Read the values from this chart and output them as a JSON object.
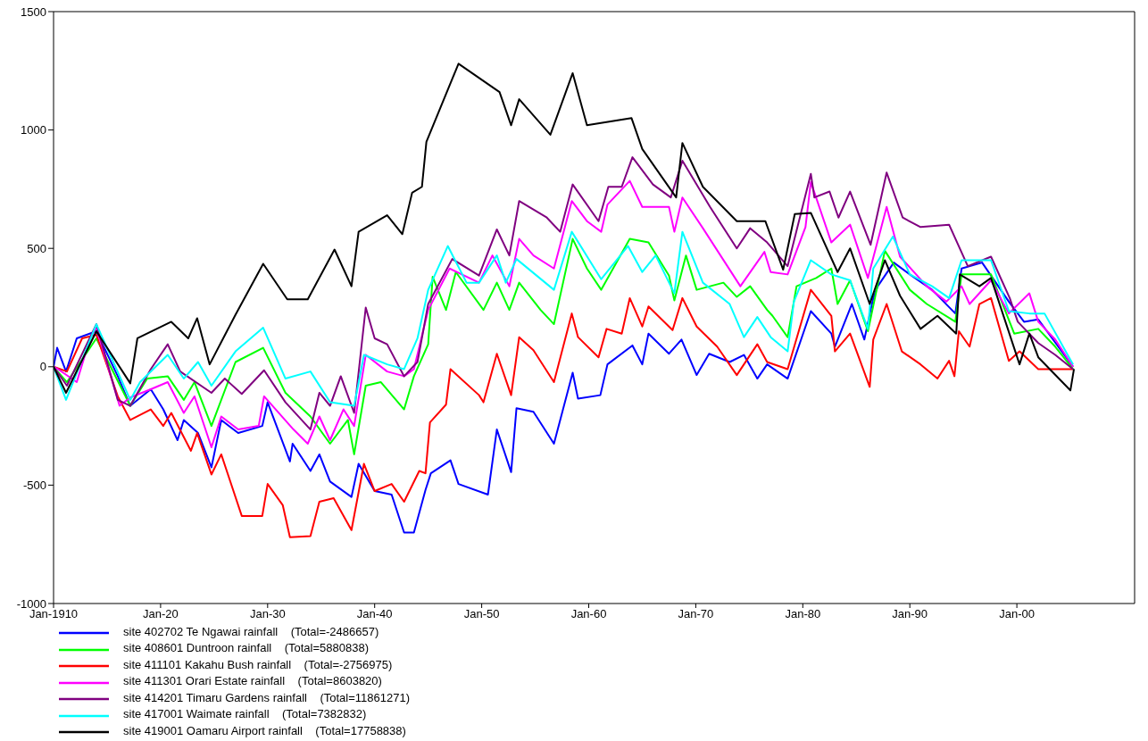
{
  "chart_data": {
    "type": "line",
    "xlim": [
      "1910-01",
      "2011-01"
    ],
    "ylim": [
      -1000,
      1500
    ],
    "xticks": [
      {
        "value": "1910-01",
        "label": "Jan-1910"
      },
      {
        "value": "1920-01",
        "label": "Jan-20"
      },
      {
        "value": "1930-01",
        "label": "Jan-30"
      },
      {
        "value": "1940-01",
        "label": "Jan-40"
      },
      {
        "value": "1950-01",
        "label": "Jan-50"
      },
      {
        "value": "1960-01",
        "label": "Jan-60"
      },
      {
        "value": "1970-01",
        "label": "Jan-70"
      },
      {
        "value": "1980-01",
        "label": "Jan-80"
      },
      {
        "value": "1990-01",
        "label": "Jan-90"
      },
      {
        "value": "2000-01",
        "label": "Jan-00"
      }
    ],
    "yticks": [
      -1000,
      -500,
      0,
      500,
      1000,
      1500
    ],
    "grid": false,
    "legend": "bottom",
    "marker": "none",
    "line_style": "solid",
    "series": [
      {
        "name": "site 402702 Te Ngawai rainfall    (Total=-2486657)",
        "color": "#0000ff",
        "x": [
          "1910-01",
          "1910-05",
          "1911-03",
          "1912-03",
          "1914-01",
          "1916-01",
          "1917-03",
          "1919-02",
          "1920-04",
          "1921-08",
          "1922-03",
          "1923-07",
          "1924-10",
          "1925-09",
          "1927-04",
          "1929-07",
          "1930-01",
          "1932-02",
          "1932-05",
          "1934-01",
          "1934-11",
          "1935-11",
          "1937-11",
          "1938-07",
          "1940-01",
          "1941-08",
          "1942-10",
          "1943-09",
          "1944-10",
          "1945-04",
          "1947-02",
          "1947-11",
          "1950-08",
          "1951-06",
          "1952-10",
          "1953-04",
          "1954-11",
          "1956-10",
          "1958-07",
          "1959-01",
          "1961-02",
          "1961-10",
          "1964-02",
          "1965-01",
          "1965-08",
          "1967-07",
          "1968-09",
          "1970-02",
          "1971-04",
          "1973-03",
          "1974-07",
          "1975-10",
          "1976-09",
          "1978-08",
          "1980-10",
          "1982-09",
          "1983-01",
          "1984-08",
          "1985-10",
          "1986-08",
          "1987-01",
          "1988-07",
          "1990-01",
          "1992-02",
          "1994-04",
          "1994-11",
          "1996-10",
          "1999-04",
          "2000-09",
          "2002-01",
          "2005-04"
        ],
        "values": [
          0,
          80,
          -20,
          120,
          150,
          -40,
          -165,
          -95,
          -180,
          -310,
          -225,
          -280,
          -425,
          -225,
          -280,
          -250,
          -150,
          -400,
          -325,
          -440,
          -370,
          -485,
          -550,
          -410,
          -525,
          -540,
          -700,
          -700,
          -520,
          -450,
          -395,
          -495,
          -540,
          -265,
          -445,
          -175,
          -190,
          -325,
          -25,
          -135,
          -120,
          10,
          90,
          10,
          140,
          55,
          115,
          -35,
          55,
          20,
          50,
          -50,
          10,
          -50,
          235,
          140,
          85,
          265,
          115,
          290,
          340,
          440,
          390,
          325,
          225,
          415,
          440,
          275,
          190,
          200,
          0
        ]
      },
      {
        "name": "site 408601 Duntroon rainfall    (Total=5880838)",
        "color": "#00ff00",
        "x": [
          "1910-01",
          "1911-04",
          "1914-01",
          "1917-03",
          "1918-10",
          "1920-09",
          "1922-03",
          "1923-03",
          "1924-10",
          "1927-01",
          "1929-08",
          "1931-09",
          "1934-01",
          "1935-11",
          "1937-07",
          "1938-02",
          "1939-03",
          "1940-08",
          "1942-10",
          "1943-09",
          "1945-01",
          "1945-06",
          "1946-09",
          "1947-08",
          "1950-03",
          "1951-06",
          "1952-08",
          "1953-07",
          "1955-07",
          "1956-10",
          "1958-07",
          "1959-11",
          "1961-03",
          "1963-11",
          "1965-08",
          "1967-07",
          "1968-01",
          "1969-02",
          "1970-02",
          "1972-08",
          "1973-11",
          "1975-02",
          "1976-09",
          "1977-03",
          "1978-08",
          "1979-06",
          "1981-04",
          "1982-09",
          "1983-04",
          "1984-06",
          "1986-02",
          "1987-09",
          "1990-01",
          "1991-08",
          "1994-04",
          "1994-11",
          "1997-08",
          "1999-10",
          "2002-01",
          "2003-08",
          "2005-04"
        ],
        "values": [
          0,
          -65,
          120,
          -165,
          -50,
          -40,
          -140,
          -65,
          -250,
          20,
          80,
          -110,
          -210,
          -325,
          -225,
          -370,
          -80,
          -65,
          -180,
          -40,
          95,
          380,
          240,
          400,
          240,
          355,
          240,
          355,
          240,
          180,
          540,
          415,
          325,
          540,
          525,
          385,
          280,
          470,
          325,
          355,
          295,
          340,
          240,
          215,
          125,
          340,
          375,
          415,
          265,
          365,
          150,
          490,
          325,
          265,
          190,
          390,
          390,
          140,
          160,
          85,
          -10
        ]
      },
      {
        "name": "site 411101 Kakahu Bush rainfall    (Total=-2756975)",
        "color": "#ff0000",
        "x": [
          "1910-01",
          "1911-04",
          "1912-09",
          "1914-01",
          "1916-01",
          "1917-03",
          "1919-02",
          "1920-04",
          "1921-01",
          "1922-11",
          "1923-06",
          "1924-10",
          "1925-09",
          "1927-08",
          "1929-07",
          "1930-01",
          "1931-06",
          "1932-02",
          "1934-01",
          "1934-11",
          "1936-03",
          "1937-11",
          "1939-01",
          "1940-01",
          "1941-08",
          "1942-10",
          "1944-03",
          "1944-10",
          "1945-03",
          "1946-09",
          "1947-02",
          "1949-10",
          "1950-03",
          "1951-06",
          "1952-10",
          "1953-07",
          "1954-11",
          "1956-10",
          "1958-06",
          "1959-01",
          "1960-12",
          "1961-09",
          "1963-02",
          "1963-11",
          "1965-01",
          "1965-08",
          "1967-11",
          "1968-10",
          "1970-02",
          "1972-01",
          "1973-11",
          "1975-10",
          "1976-09",
          "1978-08",
          "1980-10",
          "1982-09",
          "1983-01",
          "1984-06",
          "1986-04",
          "1986-08",
          "1987-11",
          "1989-04",
          "1991-01",
          "1992-08",
          "1993-09",
          "1994-03",
          "1994-08",
          "1995-08",
          "1996-07",
          "1997-08",
          "1999-04",
          "2000-04",
          "2002-01",
          "2005-04"
        ],
        "values": [
          0,
          -20,
          120,
          135,
          -125,
          -225,
          -180,
          -250,
          -195,
          -355,
          -280,
          -455,
          -370,
          -630,
          -630,
          -495,
          -585,
          -720,
          -715,
          -570,
          -555,
          -690,
          -410,
          -525,
          -495,
          -570,
          -440,
          -450,
          -235,
          -160,
          -10,
          -120,
          -150,
          55,
          -120,
          125,
          70,
          -65,
          225,
          125,
          40,
          160,
          140,
          290,
          170,
          255,
          155,
          290,
          170,
          85,
          -35,
          95,
          20,
          -10,
          325,
          215,
          65,
          140,
          -85,
          115,
          265,
          65,
          10,
          -50,
          25,
          -40,
          150,
          85,
          265,
          290,
          25,
          65,
          -10,
          -10
        ]
      },
      {
        "name": "site 411301 Orari Estate rainfall    (Total=8603820)",
        "color": "#ff00ff",
        "x": [
          "1910-01",
          "1910-06",
          "1912-03",
          "1913-06",
          "1914-01",
          "1916-03",
          "1917-03",
          "1919-02",
          "1920-09",
          "1922-03",
          "1923-03",
          "1924-10",
          "1925-09",
          "1927-04",
          "1929-03",
          "1929-09",
          "1932-06",
          "1933-10",
          "1934-11",
          "1935-11",
          "1937-02",
          "1938-02",
          "1939-03",
          "1941-03",
          "1942-10",
          "1943-09",
          "1945-01",
          "1947-01",
          "1949-10",
          "1951-01",
          "1952-08",
          "1953-07",
          "1954-11",
          "1956-10",
          "1958-06",
          "1959-11",
          "1961-03",
          "1961-10",
          "1963-11",
          "1965-01",
          "1967-07",
          "1968-01",
          "1968-10",
          "1970-09",
          "1974-03",
          "1976-06",
          "1977-01",
          "1978-08",
          "1980-04",
          "1980-10",
          "1982-09",
          "1984-06",
          "1986-02",
          "1987-11",
          "1989-02",
          "1991-08",
          "1993-06",
          "1994-11",
          "1995-08",
          "1997-08",
          "1999-04",
          "2001-03",
          "2002-01",
          "2003-08",
          "2005-04"
        ],
        "values": [
          0,
          -10,
          -65,
          120,
          165,
          -165,
          -130,
          -95,
          -65,
          -195,
          -125,
          -340,
          -210,
          -265,
          -250,
          -125,
          -265,
          -325,
          -210,
          -310,
          -180,
          -250,
          50,
          -20,
          -40,
          -10,
          240,
          415,
          355,
          470,
          340,
          540,
          470,
          415,
          700,
          615,
          570,
          685,
          785,
          675,
          675,
          570,
          715,
          585,
          340,
          485,
          400,
          390,
          590,
          780,
          525,
          600,
          375,
          675,
          465,
          340,
          275,
          340,
          265,
          365,
          225,
          310,
          190,
          115,
          0
        ]
      },
      {
        "name": "site 414201 Timaru Gardens rainfall    (Total=11861271)",
        "color": "#800080",
        "x": [
          "1910-01",
          "1911-04",
          "1914-01",
          "1916-01",
          "1917-03",
          "1919-02",
          "1920-09",
          "1921-11",
          "1924-10",
          "1926-01",
          "1927-08",
          "1929-09",
          "1931-09",
          "1934-01",
          "1934-11",
          "1935-11",
          "1936-11",
          "1938-02",
          "1939-03",
          "1940-01",
          "1941-03",
          "1942-10",
          "1944-01",
          "1945-01",
          "1947-04",
          "1949-10",
          "1951-06",
          "1952-08",
          "1953-07",
          "1956-02",
          "1957-05",
          "1958-07",
          "1960-12",
          "1961-11",
          "1963-02",
          "1964-02",
          "1966-01",
          "1967-09",
          "1968-10",
          "1971-05",
          "1973-11",
          "1975-02",
          "1976-09",
          "1978-08",
          "1980-10",
          "1981-02",
          "1982-07",
          "1983-05",
          "1984-06",
          "1986-05",
          "1987-11",
          "1989-05",
          "1991-01",
          "1993-09",
          "1995-06",
          "1997-08",
          "1999-05",
          "2000-02",
          "2002-01",
          "2003-08",
          "2005-04"
        ],
        "values": [
          0,
          -80,
          180,
          -140,
          -165,
          -10,
          95,
          -20,
          -110,
          -50,
          -115,
          -15,
          -150,
          -265,
          -110,
          -165,
          -40,
          -195,
          250,
          120,
          95,
          -40,
          20,
          265,
          455,
          385,
          580,
          470,
          700,
          630,
          570,
          770,
          615,
          760,
          760,
          885,
          770,
          715,
          870,
          675,
          500,
          585,
          525,
          425,
          815,
          715,
          740,
          630,
          740,
          515,
          820,
          630,
          590,
          600,
          425,
          465,
          290,
          190,
          100,
          50,
          -10
        ]
      },
      {
        "name": "site 417001 Waimate rainfall    (Total=7382832)",
        "color": "#00ffff",
        "x": [
          "1910-01",
          "1911-03",
          "1914-01",
          "1917-03",
          "1918-02",
          "1920-09",
          "1922-03",
          "1923-07",
          "1924-10",
          "1927-01",
          "1929-08",
          "1931-09",
          "1934-01",
          "1935-11",
          "1938-02",
          "1939-01",
          "1941-03",
          "1942-10",
          "1944-01",
          "1945-01",
          "1946-11",
          "1948-08",
          "1949-10",
          "1951-06",
          "1952-04",
          "1953-04",
          "1956-10",
          "1958-06",
          "1961-03",
          "1963-09",
          "1965-01",
          "1966-04",
          "1968-01",
          "1968-10",
          "1970-09",
          "1973-03",
          "1974-07",
          "1975-10",
          "1977-01",
          "1978-08",
          "1979-03",
          "1980-10",
          "1982-09",
          "1984-06",
          "1986-02",
          "1986-08",
          "1988-06",
          "1990-01",
          "1992-02",
          "1993-09",
          "1994-11",
          "1997-08",
          "1999-04",
          "2001-03",
          "2002-08",
          "2005-04"
        ],
        "values": [
          0,
          -140,
          180,
          -140,
          -65,
          50,
          -50,
          20,
          -80,
          65,
          165,
          -50,
          -20,
          -150,
          -165,
          50,
          10,
          -10,
          120,
          325,
          510,
          355,
          355,
          470,
          355,
          455,
          325,
          570,
          370,
          510,
          400,
          470,
          310,
          570,
          355,
          265,
          125,
          210,
          125,
          65,
          275,
          450,
          390,
          365,
          160,
          415,
          550,
          390,
          340,
          290,
          450,
          450,
          235,
          225,
          225,
          10
        ]
      },
      {
        "name": "site 419001 Oamaru Airport rainfall    (Total=17758838)",
        "color": "#000000",
        "x": [
          "1910-01",
          "1911-03",
          "1914-01",
          "1917-03",
          "1917-11",
          "1921-01",
          "1922-08",
          "1923-06",
          "1924-08",
          "1927-01",
          "1929-08",
          "1931-11",
          "1933-10",
          "1936-04",
          "1937-11",
          "1938-07",
          "1941-03",
          "1942-08",
          "1943-07",
          "1944-06",
          "1944-11",
          "1947-11",
          "1951-09",
          "1952-10",
          "1953-07",
          "1956-06",
          "1958-07",
          "1959-11",
          "1964-01",
          "1965-01",
          "1968-03",
          "1968-10",
          "1970-09",
          "1973-11",
          "1976-07",
          "1978-03",
          "1979-04",
          "1980-10",
          "1983-04",
          "1984-06",
          "1986-04",
          "1987-09",
          "1989-02",
          "1991-01",
          "1992-08",
          "1994-05",
          "1994-09",
          "1996-07",
          "1997-08",
          "2000-04",
          "2001-03",
          "2002-01",
          "2005-01",
          "2005-05"
        ],
        "values": [
          0,
          -110,
          150,
          -70,
          120,
          190,
          120,
          205,
          10,
          220,
          435,
          285,
          285,
          495,
          340,
          570,
          640,
          560,
          735,
          760,
          950,
          1280,
          1160,
          1020,
          1130,
          980,
          1240,
          1020,
          1050,
          920,
          715,
          945,
          760,
          615,
          615,
          410,
          645,
          650,
          400,
          500,
          265,
          450,
          300,
          160,
          215,
          140,
          390,
          340,
          375,
          10,
          140,
          40,
          -100,
          -10
        ]
      }
    ]
  }
}
